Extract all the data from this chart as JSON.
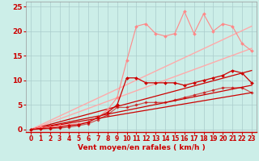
{
  "background_color": "#cceee8",
  "grid_color": "#aacccc",
  "xlabel": "Vent moyen/en rafales ( km/h )",
  "xlabel_color": "#cc0000",
  "xlabel_fontsize": 6.5,
  "tick_color": "#cc0000",
  "tick_fontsize": 5.5,
  "xlim": [
    -0.5,
    23.5
  ],
  "ylim": [
    -0.5,
    26
  ],
  "yticks": [
    0,
    5,
    10,
    15,
    20,
    25
  ],
  "ytick_fontsize": 6.5,
  "xticks": [
    0,
    1,
    2,
    3,
    4,
    5,
    6,
    7,
    8,
    9,
    10,
    11,
    12,
    13,
    14,
    15,
    16,
    17,
    18,
    19,
    20,
    21,
    22,
    23
  ],
  "series": [
    {
      "x": [
        0,
        1,
        2,
        3,
        4,
        5,
        6,
        7,
        8,
        9,
        10,
        11,
        12,
        13,
        14,
        15,
        16,
        17,
        18,
        19,
        20,
        21,
        22,
        23
      ],
      "y": [
        0,
        0.5,
        0.5,
        0.8,
        1.0,
        1.2,
        1.5,
        2.5,
        4.0,
        6.5,
        14.0,
        21.0,
        21.5,
        19.5,
        19.0,
        19.5,
        24.0,
        19.5,
        23.5,
        20.0,
        21.5,
        21.0,
        17.5,
        16.0
      ],
      "color": "#ff8888",
      "linewidth": 0.8,
      "marker": "D",
      "markersize": 2.0,
      "alpha": 1.0,
      "zorder": 4
    },
    {
      "x": [
        0,
        23
      ],
      "y": [
        0,
        21.0
      ],
      "color": "#ffaaaa",
      "linewidth": 1.0,
      "marker": null,
      "markersize": 0,
      "alpha": 1.0,
      "zorder": 2
    },
    {
      "x": [
        0,
        23
      ],
      "y": [
        0,
        16.5
      ],
      "color": "#ffaaaa",
      "linewidth": 1.0,
      "marker": null,
      "markersize": 0,
      "alpha": 1.0,
      "zorder": 2
    },
    {
      "x": [
        0,
        1,
        2,
        3,
        4,
        5,
        6,
        7,
        8,
        9,
        10,
        11,
        12,
        13,
        14,
        15,
        16,
        17,
        18,
        19,
        20,
        21,
        22,
        23
      ],
      "y": [
        0,
        0.2,
        0.3,
        0.5,
        0.8,
        1.0,
        1.5,
        2.5,
        3.5,
        5.0,
        10.5,
        10.5,
        9.5,
        9.5,
        9.5,
        9.5,
        9.0,
        9.5,
        10.0,
        10.5,
        11.0,
        12.0,
        11.5,
        9.5
      ],
      "color": "#cc0000",
      "linewidth": 0.9,
      "marker": "D",
      "markersize": 2.0,
      "alpha": 1.0,
      "zorder": 5
    },
    {
      "x": [
        0,
        23
      ],
      "y": [
        0,
        12.0
      ],
      "color": "#cc0000",
      "linewidth": 0.9,
      "marker": null,
      "markersize": 0,
      "alpha": 1.0,
      "zorder": 3
    },
    {
      "x": [
        0,
        23
      ],
      "y": [
        0,
        9.0
      ],
      "color": "#cc0000",
      "linewidth": 0.9,
      "marker": null,
      "markersize": 0,
      "alpha": 1.0,
      "zorder": 3
    },
    {
      "x": [
        0,
        23
      ],
      "y": [
        0,
        7.5
      ],
      "color": "#cc0000",
      "linewidth": 0.9,
      "marker": null,
      "markersize": 0,
      "alpha": 1.0,
      "zorder": 3
    },
    {
      "x": [
        0,
        1,
        2,
        3,
        4,
        5,
        6,
        7,
        8,
        9,
        10,
        11,
        12,
        13,
        14,
        15,
        16,
        17,
        18,
        19,
        20,
        21,
        22,
        23
      ],
      "y": [
        0,
        0.1,
        0.2,
        0.3,
        0.5,
        0.8,
        1.2,
        2.0,
        3.0,
        4.5,
        4.5,
        5.0,
        5.5,
        5.5,
        5.5,
        6.0,
        6.5,
        7.0,
        7.5,
        8.0,
        8.5,
        8.5,
        8.5,
        7.5
      ],
      "color": "#cc0000",
      "linewidth": 0.9,
      "marker": "D",
      "markersize": 1.8,
      "alpha": 0.65,
      "zorder": 4
    }
  ]
}
